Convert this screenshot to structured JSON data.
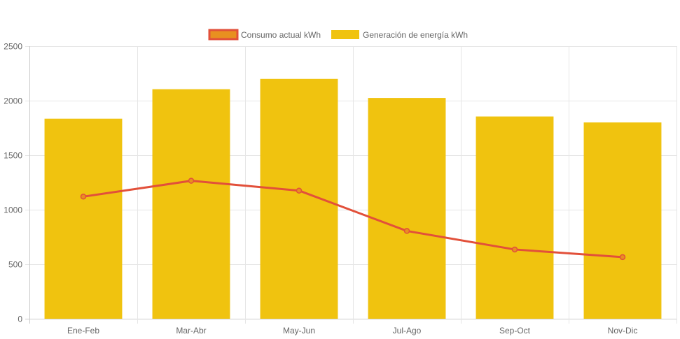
{
  "chart_data": {
    "type": "bar",
    "categories": [
      "Ene-Feb",
      "Mar-Abr",
      "May-Jun",
      "Jul-Ago",
      "Sep-Oct",
      "Nov-Dic"
    ],
    "series": [
      {
        "name": "Consumo actual kWh",
        "type": "line",
        "values": [
          1120,
          1265,
          1175,
          805,
          635,
          565
        ],
        "color": "#e2503a",
        "fill": "#e89020"
      },
      {
        "name": "Generación de energía kWh",
        "type": "bar",
        "values": [
          1835,
          2105,
          2200,
          2025,
          1855,
          1800
        ],
        "color": "#f0c30f"
      }
    ],
    "ylim": [
      0,
      2500
    ],
    "yticks": [
      0,
      500,
      1000,
      1500,
      2000,
      2500
    ],
    "grid": true,
    "legend": "top-center"
  }
}
